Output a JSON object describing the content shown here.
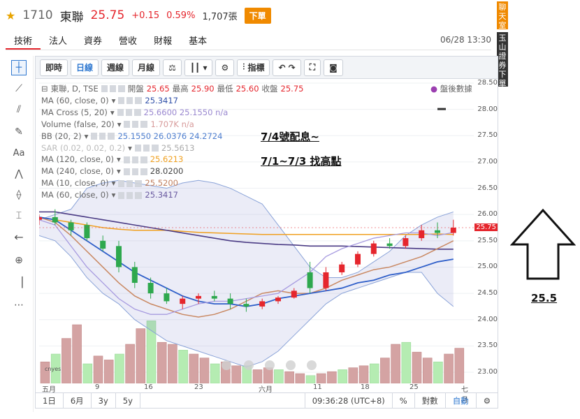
{
  "header": {
    "stock_code": "1710",
    "stock_name": "東聯",
    "price": "25.75",
    "change": "+0.15",
    "change_pct": "0.59%",
    "volume": "1,707張",
    "order_button": "下單"
  },
  "tabs": [
    "技術",
    "法人",
    "資券",
    "營收",
    "財報",
    "基本"
  ],
  "datetime": "06/28 13:30",
  "side_tabs": [
    "聊天室",
    "玉山證券下單"
  ],
  "toolbar": {
    "buttons": [
      "即時",
      "日線",
      "週線",
      "月線"
    ],
    "indicator": "指標"
  },
  "legend": {
    "title": "東聯, D, TSE",
    "ohlc": {
      "open_label": "開盤",
      "open": "25.65",
      "high_label": "最高",
      "high": "25.90",
      "low_label": "最低",
      "low": "25.60",
      "close_label": "收盤",
      "close": "25.75"
    },
    "after_hours": "盤後數據",
    "lines": [
      {
        "label": "MA (60, close, 0)",
        "value": "25.3417",
        "color": "#2f4fa8"
      },
      {
        "label": "MA Cross (5, 20)",
        "value": "25.6600 25.1550 n/a",
        "color": "#9a88d0"
      },
      {
        "label": "Volume (false, 20)",
        "value": "1.707K n/a",
        "color": "#d79a9a"
      },
      {
        "label": "BB (20, 2)",
        "value": "25.1550 26.0376 24.2724",
        "color": "#4f7fcf"
      },
      {
        "label": "SAR (0.02, 0.02, 0.2)",
        "value": "25.5613",
        "color": "#aaa"
      },
      {
        "label": "MA (120, close, 0)",
        "value": "25.6213",
        "color": "#f0a020"
      },
      {
        "label": "MA (240, close, 0)",
        "value": "28.0200",
        "color": "#444"
      },
      {
        "label": "MA (10, close, 0)",
        "value": "25.5200",
        "color": "#c08060"
      },
      {
        "label": "MA (60, close, 0)",
        "value": "25.3417",
        "color": "#6a5aa0"
      }
    ]
  },
  "annotations": {
    "line1": "7/4號配息~",
    "line2": "7/1~7/3 找高點",
    "arrow_label": "25.5"
  },
  "price_axis": {
    "ticks": [
      "28.50",
      "28.00",
      "27.50",
      "27.00",
      "26.50",
      "26.00",
      "25.50",
      "25.00",
      "24.50",
      "24.00",
      "23.50",
      "23.00"
    ],
    "last": "25.75"
  },
  "x_axis": [
    "五月",
    "9",
    "16",
    "23",
    "六月",
    "11",
    "18",
    "25",
    "七月"
  ],
  "bottom_bar": {
    "ranges": [
      "1日",
      "6月",
      "3y",
      "5y"
    ],
    "time": "09:36:28 (UTC+8)",
    "pct": "%",
    "log": "對數",
    "auto": "自動"
  },
  "colors": {
    "up": "#e5262d",
    "down": "#2ea84e",
    "accent": "#2f78d0"
  }
}
